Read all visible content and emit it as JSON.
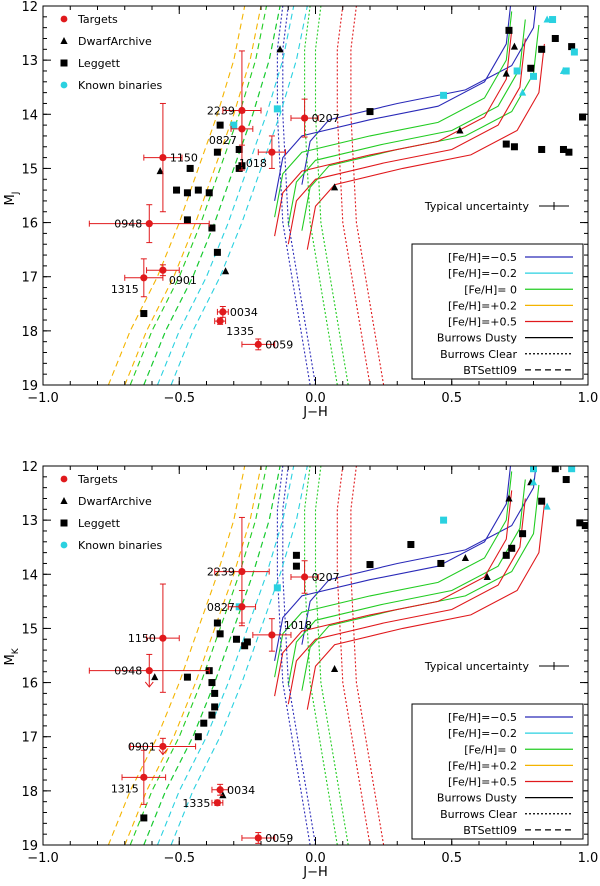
{
  "chart_data": [
    {
      "type": "scatter",
      "panel": "top",
      "title": "",
      "xlabel": "J−H",
      "ylabel_main": "M",
      "ylabel_sub": "J",
      "xlim": [
        -1.0,
        1.0
      ],
      "ylim": [
        19,
        12
      ],
      "xticks": [
        -1.0,
        -0.5,
        0.0,
        0.5,
        1.0
      ],
      "xtick_labels": [
        "−1.0",
        "−0.5",
        "0.0",
        "0.5",
        "1.0"
      ],
      "yticks": [
        12,
        13,
        14,
        15,
        16,
        17,
        18,
        19
      ],
      "ytick_labels": [
        "12",
        "13",
        "14",
        "15",
        "16",
        "17",
        "18",
        "19"
      ],
      "top_legend": [
        {
          "label": "Targets",
          "marker": "circle",
          "color": "#e0191c"
        },
        {
          "label": "DwarfArchive",
          "marker": "triangle",
          "color": "#000000"
        },
        {
          "label": "Leggett",
          "marker": "square",
          "color": "#000000"
        },
        {
          "label": "Known binaries",
          "marker": "circle",
          "color": "#2ad1e0"
        }
      ],
      "uncertainty_label": "Typical uncertainty",
      "line_legend": [
        {
          "label": "[Fe/H]=−0.5",
          "style": "solid",
          "color": "#2a2ab8"
        },
        {
          "label": "[Fe/H]=−0.2",
          "style": "solid",
          "color": "#2ad1e0"
        },
        {
          "label": "[Fe/H]= 0",
          "style": "solid",
          "color": "#22cc22"
        },
        {
          "label": "[Fe/H]=+0.2",
          "style": "solid",
          "color": "#f4b400"
        },
        {
          "label": "[Fe/H]=+0.5",
          "style": "solid",
          "color": "#e0191c"
        },
        {
          "label": "Burrows Dusty",
          "style": "solid",
          "color": "#000000"
        },
        {
          "label": "Burrows Clear",
          "style": "dotted",
          "color": "#000000"
        },
        {
          "label": "BTSettl09",
          "style": "dashed",
          "color": "#000000"
        }
      ],
      "targets": [
        {
          "name": "2239",
          "x": -0.27,
          "y": 13.93,
          "xerr": 0.07,
          "yerr": 1.1,
          "lab": "left"
        },
        {
          "name": "0207",
          "x": -0.04,
          "y": 14.07,
          "xerr": 0.05,
          "yerr": 0.35,
          "lab": "right"
        },
        {
          "name": "0827",
          "x": -0.27,
          "y": 14.27,
          "xerr": 0.04,
          "yerr": 0.3,
          "lab": "left-below"
        },
        {
          "name": "1018",
          "x": -0.16,
          "y": 14.7,
          "xerr": 0.05,
          "yerr": 0.3,
          "lab": "left-below"
        },
        {
          "name": "1150",
          "x": -0.56,
          "y": 14.8,
          "xerr": 0.07,
          "yerr": 1.0,
          "lab": "right"
        },
        {
          "name": "0948",
          "x": -0.61,
          "y": 16.02,
          "xerr": 0.22,
          "yerr": 0.35,
          "lab": "left"
        },
        {
          "name": "0901",
          "x": -0.56,
          "y": 16.88,
          "xerr": 0.06,
          "yerr": 0.1,
          "lab": "right-below"
        },
        {
          "name": "1315",
          "x": -0.63,
          "y": 17.02,
          "xerr": 0.07,
          "yerr": 0.35,
          "lab": "left-below"
        },
        {
          "name": "0034",
          "x": -0.34,
          "y": 17.65,
          "xerr": 0.02,
          "yerr": 0.1,
          "lab": "right"
        },
        {
          "name": "1335",
          "x": -0.35,
          "y": 17.82,
          "xerr": 0.02,
          "yerr": 0.06,
          "lab": "right-below"
        },
        {
          "name": "0059",
          "x": -0.21,
          "y": 18.25,
          "xerr": 0.06,
          "yerr": 0.1,
          "lab": "right"
        }
      ],
      "dwarf_archive": [
        [
          -0.13,
          12.8
        ],
        [
          0.07,
          15.35
        ],
        [
          -0.57,
          15.05
        ],
        [
          -0.33,
          16.9
        ],
        [
          0.53,
          14.3
        ],
        [
          0.7,
          13.25
        ],
        [
          0.73,
          12.75
        ]
      ],
      "leggett": [
        [
          -0.38,
          16.1
        ],
        [
          -0.39,
          15.45
        ],
        [
          -0.43,
          15.4
        ],
        [
          -0.47,
          15.45
        ],
        [
          -0.51,
          15.4
        ],
        [
          -0.46,
          15.0
        ],
        [
          -0.47,
          15.95
        ],
        [
          -0.36,
          16.55
        ],
        [
          -0.35,
          14.2
        ],
        [
          -0.36,
          14.7
        ],
        [
          -0.28,
          14.65
        ],
        [
          -0.27,
          14.95
        ],
        [
          -0.28,
          15.0
        ],
        [
          -0.63,
          17.68
        ],
        [
          0.2,
          13.95
        ],
        [
          0.7,
          14.55
        ],
        [
          0.73,
          14.6
        ],
        [
          0.83,
          14.65
        ],
        [
          0.91,
          14.65
        ],
        [
          0.93,
          14.7
        ],
        [
          0.79,
          13.15
        ],
        [
          0.83,
          12.8
        ],
        [
          0.88,
          12.6
        ],
        [
          0.94,
          12.75
        ],
        [
          0.98,
          14.05
        ],
        [
          0.71,
          12.45
        ]
      ],
      "known_binaries": [
        [
          -0.14,
          13.9
        ],
        [
          -0.3,
          14.2
        ],
        [
          0.47,
          13.65
        ],
        [
          0.92,
          13.2
        ],
        [
          0.95,
          12.85
        ],
        [
          0.87,
          12.25
        ],
        [
          0.74,
          13.2
        ],
        [
          0.8,
          13.3
        ]
      ],
      "known_binaries_tri": [
        [
          0.85,
          12.25
        ],
        [
          0.91,
          13.2
        ],
        [
          0.76,
          13.6
        ]
      ]
    },
    {
      "type": "scatter",
      "panel": "bottom",
      "title": "",
      "xlabel": "J−H",
      "ylabel_main": "M",
      "ylabel_sub": "K",
      "xlim": [
        -1.0,
        1.0
      ],
      "ylim": [
        19,
        12
      ],
      "xticks": [
        -1.0,
        -0.5,
        0.0,
        0.5,
        1.0
      ],
      "xtick_labels": [
        "−1.0",
        "−0.5",
        "0.0",
        "0.5",
        "1.0"
      ],
      "yticks": [
        12,
        13,
        14,
        15,
        16,
        17,
        18,
        19
      ],
      "ytick_labels": [
        "12",
        "13",
        "14",
        "15",
        "16",
        "17",
        "18",
        "19"
      ],
      "top_legend": [
        {
          "label": "Targets",
          "marker": "circle",
          "color": "#e0191c"
        },
        {
          "label": "DwarfArchive",
          "marker": "triangle",
          "color": "#000000"
        },
        {
          "label": "Leggett",
          "marker": "square",
          "color": "#000000"
        },
        {
          "label": "Known binaries",
          "marker": "circle",
          "color": "#2ad1e0"
        }
      ],
      "uncertainty_label": "Typical uncertainty",
      "line_legend": [
        {
          "label": "[Fe/H]=−0.5",
          "style": "solid",
          "color": "#2a2ab8"
        },
        {
          "label": "[Fe/H]=−0.2",
          "style": "solid",
          "color": "#2ad1e0"
        },
        {
          "label": "[Fe/H]= 0",
          "style": "solid",
          "color": "#22cc22"
        },
        {
          "label": "[Fe/H]=+0.2",
          "style": "solid",
          "color": "#f4b400"
        },
        {
          "label": "[Fe/H]=+0.5",
          "style": "solid",
          "color": "#e0191c"
        },
        {
          "label": "Burrows Dusty",
          "style": "solid",
          "color": "#000000"
        },
        {
          "label": "Burrows Clear",
          "style": "dotted",
          "color": "#000000"
        },
        {
          "label": "BTSettl09",
          "style": "dashed",
          "color": "#000000"
        }
      ],
      "targets": [
        {
          "name": "2239",
          "x": -0.27,
          "y": 13.95,
          "xerr": 0.1,
          "yerr": 1.0,
          "lab": "left"
        },
        {
          "name": "0207",
          "x": -0.04,
          "y": 14.05,
          "xerr": 0.05,
          "yerr": 0.3,
          "lab": "right"
        },
        {
          "name": "0827",
          "x": -0.27,
          "y": 14.6,
          "xerr": 0.05,
          "yerr": 0.3,
          "lab": "left"
        },
        {
          "name": "1018",
          "x": -0.16,
          "y": 15.12,
          "xerr": 0.07,
          "yerr": 0.3,
          "lab": "right-above"
        },
        {
          "name": "1150",
          "x": -0.56,
          "y": 15.18,
          "xerr": 0.06,
          "yerr": 1.0,
          "lab": "left"
        },
        {
          "name": "0948",
          "x": -0.61,
          "y": 15.78,
          "xerr": 0.22,
          "yerr": 0.3,
          "lab": "left",
          "upper_limit": true
        },
        {
          "name": "0901",
          "x": -0.56,
          "y": 17.18,
          "xerr": 0.12,
          "yerr": 0.15,
          "lab": "left",
          "upper_limit": true
        },
        {
          "name": "1315",
          "x": -0.63,
          "y": 17.75,
          "xerr": 0.08,
          "yerr": 0.5,
          "lab": "left-below"
        },
        {
          "name": "0034",
          "x": -0.35,
          "y": 17.98,
          "xerr": 0.03,
          "yerr": 0.1,
          "lab": "right"
        },
        {
          "name": "1335",
          "x": -0.36,
          "y": 18.22,
          "xerr": 0.02,
          "yerr": 0.05,
          "lab": "left"
        },
        {
          "name": "0059",
          "x": -0.21,
          "y": 18.87,
          "xerr": 0.06,
          "yerr": 0.1,
          "lab": "right"
        }
      ],
      "dwarf_archive": [
        [
          0.07,
          15.75
        ],
        [
          -0.34,
          18.08
        ],
        [
          -0.59,
          15.9
        ],
        [
          0.55,
          13.7
        ],
        [
          0.63,
          14.05
        ],
        [
          0.71,
          12.6
        ],
        [
          0.79,
          12.3
        ]
      ],
      "leggett": [
        [
          -0.39,
          15.78
        ],
        [
          -0.38,
          16.0
        ],
        [
          -0.37,
          16.2
        ],
        [
          -0.37,
          16.45
        ],
        [
          -0.38,
          16.6
        ],
        [
          -0.41,
          16.75
        ],
        [
          -0.43,
          17.0
        ],
        [
          -0.47,
          15.9
        ],
        [
          -0.36,
          14.9
        ],
        [
          -0.35,
          15.1
        ],
        [
          -0.29,
          15.2
        ],
        [
          -0.26,
          15.32
        ],
        [
          -0.25,
          15.25
        ],
        [
          -0.07,
          13.65
        ],
        [
          -0.07,
          13.85
        ],
        [
          -0.63,
          18.5
        ],
        [
          0.2,
          13.82
        ],
        [
          0.35,
          13.45
        ],
        [
          0.46,
          13.8
        ],
        [
          0.7,
          13.65
        ],
        [
          0.72,
          13.52
        ],
        [
          0.76,
          13.25
        ],
        [
          0.83,
          12.65
        ],
        [
          0.88,
          12.05
        ],
        [
          0.92,
          12.25
        ],
        [
          0.97,
          13.05
        ],
        [
          0.99,
          13.1
        ]
      ],
      "known_binaries": [
        [
          -0.14,
          14.25
        ],
        [
          -0.28,
          14.6
        ],
        [
          0.47,
          13.0
        ],
        [
          0.8,
          12.05
        ],
        [
          0.94,
          12.05
        ]
      ],
      "known_binaries_tri": [
        [
          0.8,
          12.3
        ],
        [
          0.85,
          12.75
        ]
      ]
    }
  ]
}
